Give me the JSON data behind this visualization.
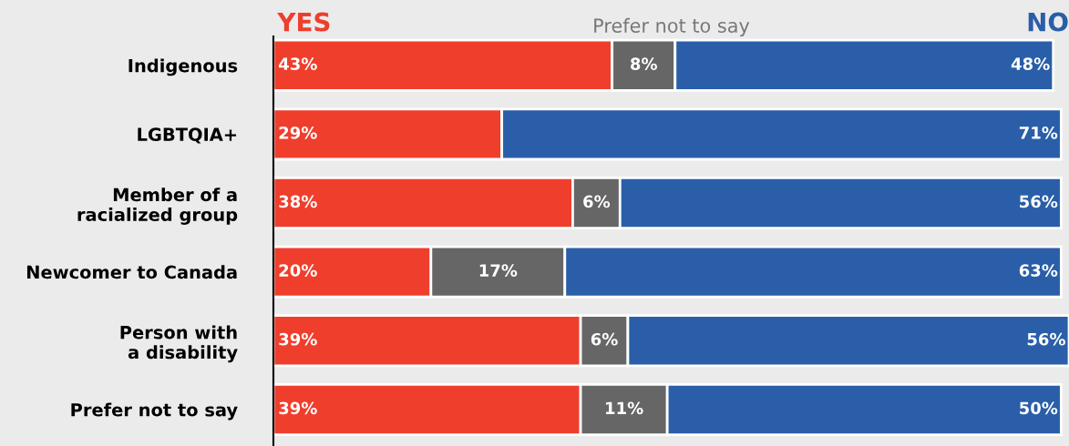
{
  "chart_data": {
    "type": "bar",
    "orientation": "horizontal",
    "stacked": true,
    "legend": "top",
    "grid": false,
    "categories": [
      "Indigenous",
      "LGBTQIA+",
      "Member of a\nracialized group",
      "Newcomer to Canada",
      "Person with\na disability",
      "Prefer not to say"
    ],
    "series": [
      {
        "name": "YES",
        "color": "#f03e2c",
        "values": [
          43,
          29,
          38,
          20,
          39,
          39
        ],
        "value_labels": [
          "43%",
          "29%",
          "38%",
          "20%",
          "39%",
          "39%"
        ]
      },
      {
        "name": "Prefer not to say",
        "color": "#666666",
        "values": [
          8,
          null,
          6,
          17,
          6,
          11
        ],
        "value_labels": [
          "8%",
          null,
          "6%",
          "17%",
          "6%",
          "11%"
        ]
      },
      {
        "name": "NO",
        "color": "#2a5ea8",
        "values": [
          48,
          71,
          56,
          63,
          56,
          50
        ],
        "value_labels": [
          "48%",
          "71%",
          "56%",
          "63%",
          "56%",
          "50%"
        ]
      }
    ]
  }
}
